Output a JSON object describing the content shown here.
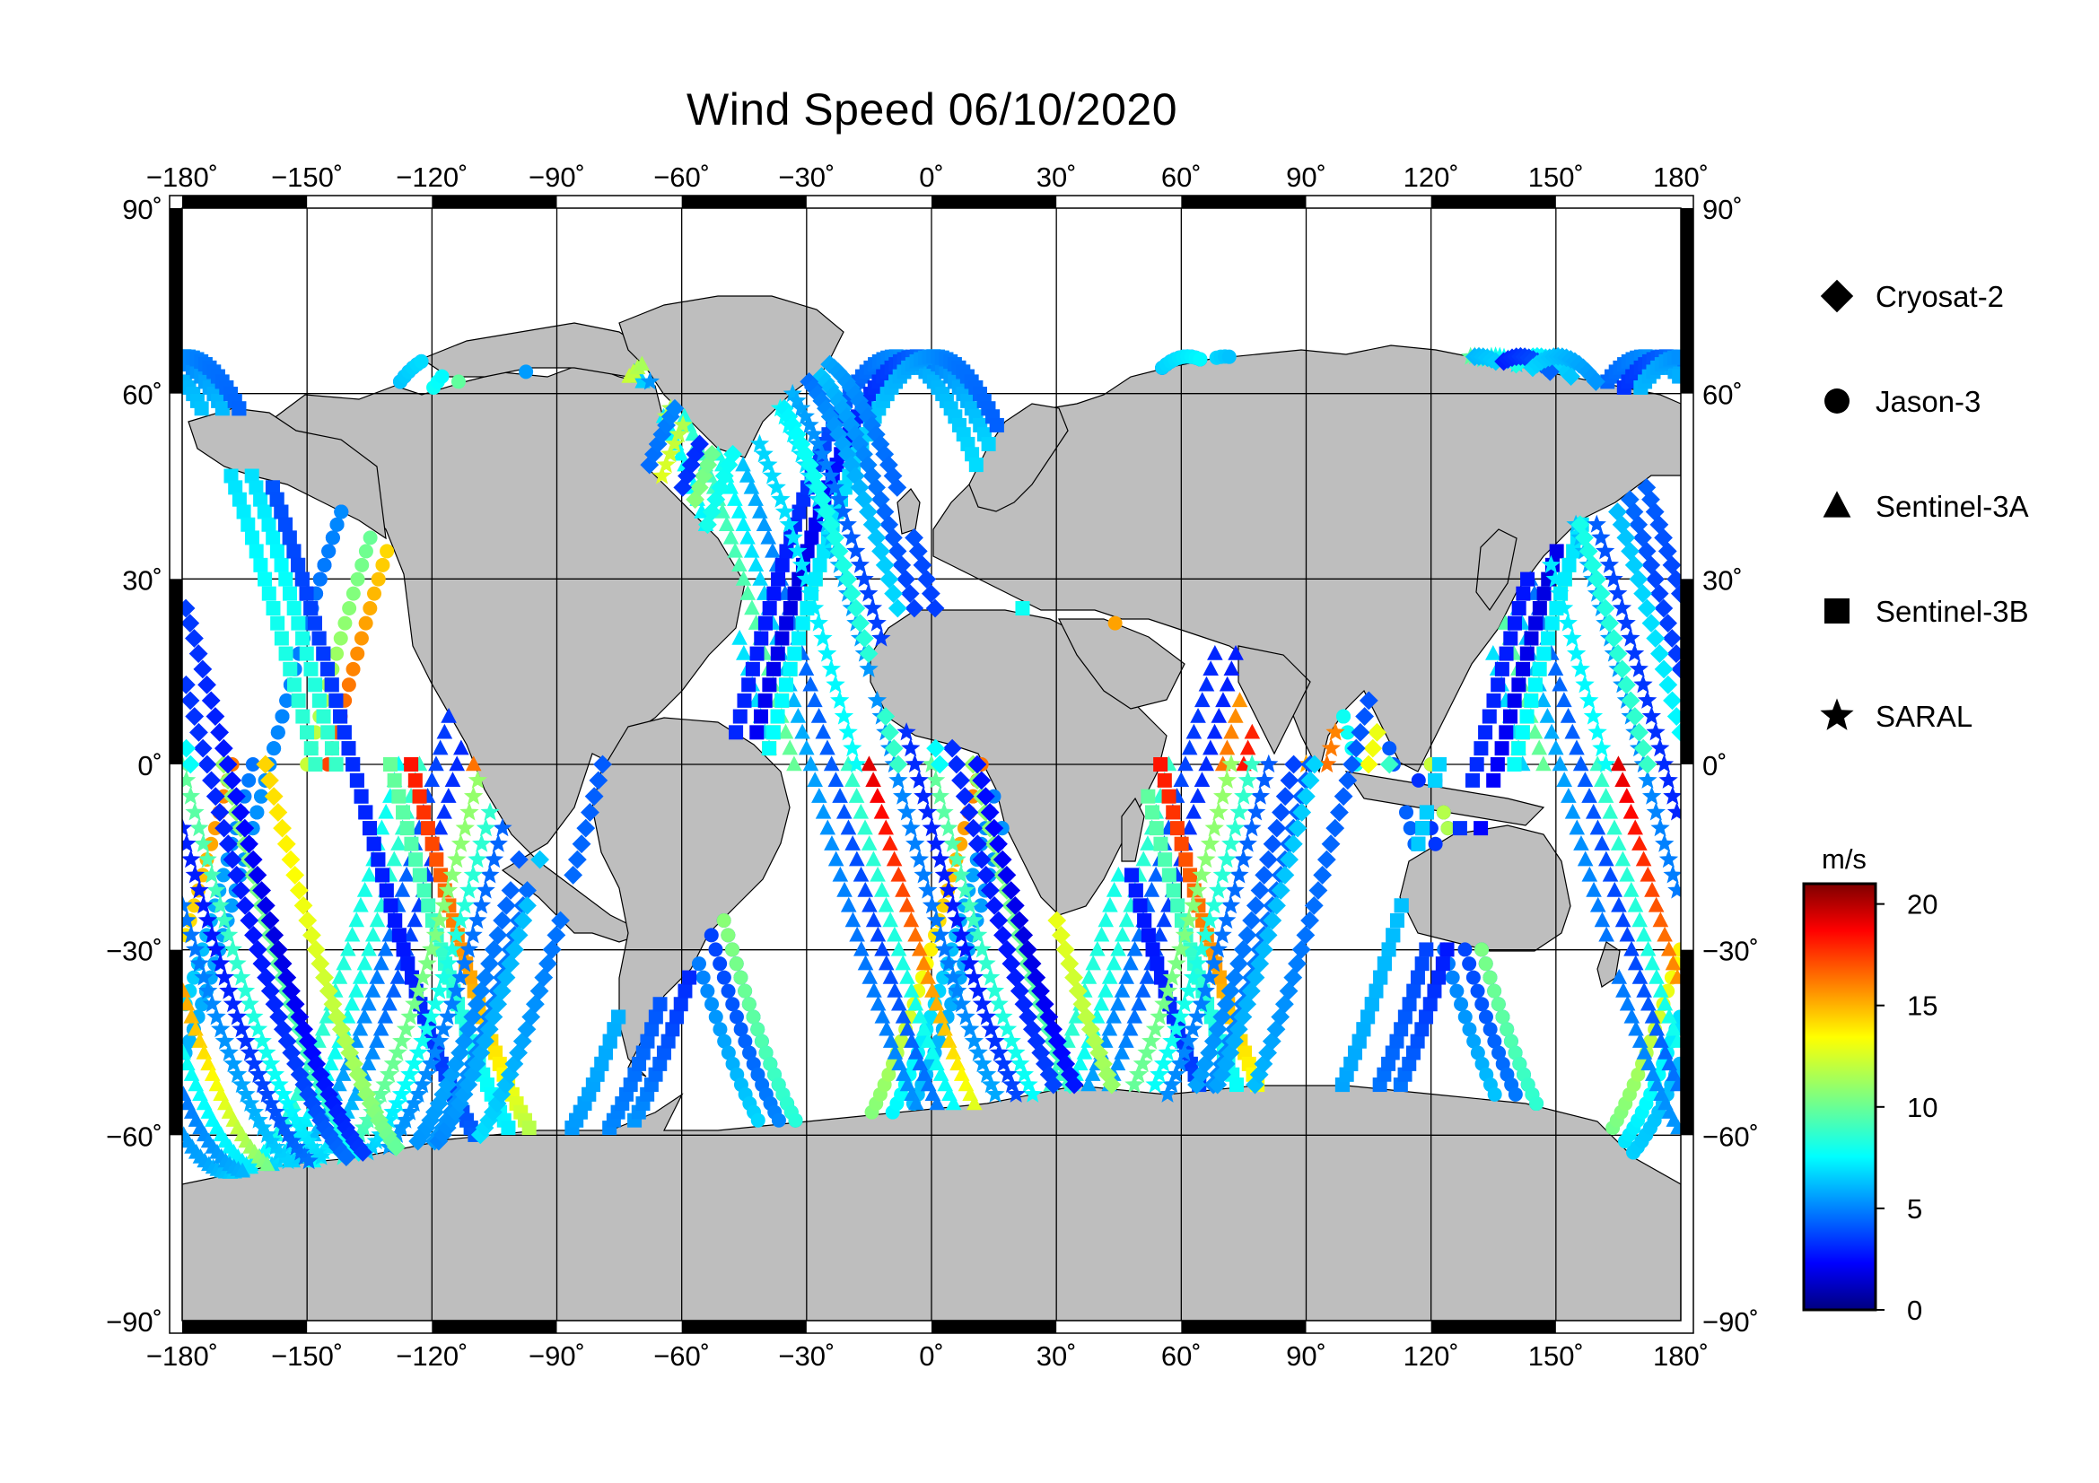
{
  "title": "Wind Speed 06/10/2020",
  "map": {
    "projection": "equirectangular",
    "lon_range": [
      -180,
      180
    ],
    "lat_range": [
      -90,
      90
    ],
    "lon_ticks": [
      "−180˚",
      "−150˚",
      "−120˚",
      "−90˚",
      "−60˚",
      "−30˚",
      "0˚",
      "30˚",
      "60˚",
      "90˚",
      "120˚",
      "150˚",
      "180˚"
    ],
    "lat_ticks_left": [
      "90˚",
      "60˚",
      "30˚",
      "0˚",
      "−30˚",
      "−60˚",
      "−90˚"
    ],
    "lat_ticks_right": [
      "90˚",
      "60˚",
      "30˚",
      "0˚",
      "−30˚",
      "−60˚",
      "−90˚"
    ],
    "land_color": "#bebebe",
    "ocean_color": "#ffffff",
    "grid": true
  },
  "legend": {
    "items": [
      {
        "label": "Cryosat-2",
        "symbol": "diamond"
      },
      {
        "label": "Jason-3",
        "symbol": "circle"
      },
      {
        "label": "Sentinel-3A",
        "symbol": "triangle"
      },
      {
        "label": "Sentinel-3B",
        "symbol": "square"
      },
      {
        "label": "SARAL",
        "symbol": "star"
      }
    ]
  },
  "colorbar": {
    "unit": "m/s",
    "range": [
      0,
      21
    ],
    "ticks": [
      "0",
      "5",
      "10",
      "15",
      "20"
    ],
    "colormap": "jet"
  },
  "chart_data": {
    "type": "scatter",
    "title": "Wind Speed 06/10/2020",
    "xlim": [
      -180,
      180
    ],
    "ylim": [
      -90,
      90
    ],
    "color_value_range": [
      0,
      21
    ],
    "color_value_unit": "m/s",
    "series": [
      {
        "name": "Jason-3",
        "symbol": "circle",
        "tracks": [
          {
            "lon0": -150,
            "dir": 1,
            "speeds": [
              12,
              9,
              6,
              4,
              5,
              8,
              11,
              16
            ]
          },
          {
            "lon0": -60,
            "dir": -1,
            "speeds": [
              4,
              5,
              7,
              5,
              4,
              3,
              6,
              8
            ]
          },
          {
            "lon0": 35,
            "dir": 1,
            "speeds": [
              17,
              12,
              6,
              3,
              4,
              6,
              8,
              5
            ]
          },
          {
            "lon0": 120,
            "dir": -1,
            "speeds": [
              12,
              9,
              7,
              6,
              5,
              7,
              9,
              8
            ]
          }
        ]
      },
      {
        "name": "Sentinel-3A",
        "symbol": "triangle",
        "tracks": [
          {
            "lon0": -110,
            "dir": 1,
            "speeds": [
              16,
              12,
              10,
              7,
              5,
              6,
              9,
              8
            ]
          },
          {
            "lon0": -20,
            "dir": -1,
            "speeds": [
              9,
              8,
              7,
              5,
              3,
              5,
              8,
              7
            ]
          },
          {
            "lon0": 75,
            "dir": 1,
            "speeds": [
              18,
              14,
              9,
              5,
              4,
              6,
              8,
              9
            ]
          },
          {
            "lon0": 165,
            "dir": -1,
            "speeds": [
              19,
              13,
              8,
              4,
              3,
              5,
              9,
              10
            ]
          }
        ]
      },
      {
        "name": "Sentinel-3B",
        "symbol": "square",
        "tracks": [
          {
            "lon0": -130,
            "dir": -1,
            "speeds": [
              10,
              8,
              6,
              4,
              3,
              5,
              7,
              9
            ]
          },
          {
            "lon0": -40,
            "dir": 1,
            "speeds": [
              14,
              10,
              6,
              4,
              5,
              7,
              6,
              5
            ]
          },
          {
            "lon0": 55,
            "dir": -1,
            "speeds": [
              18,
              13,
              7,
              3,
              2,
              4,
              7,
              9
            ]
          },
          {
            "lon0": 140,
            "dir": 1,
            "speeds": [
              8,
              7,
              5,
              4,
              3,
              5,
              6,
              7
            ]
          }
        ]
      },
      {
        "name": "SARAL",
        "symbol": "star",
        "tracks": [
          {
            "lon0": -90,
            "dir": 1,
            "speeds": [
              15,
              12,
              9,
              6,
              5,
              7,
              10,
              11
            ]
          },
          {
            "lon0": 0,
            "dir": -1,
            "speeds": [
              10,
              8,
              6,
              5,
              4,
              6,
              7,
              8
            ]
          },
          {
            "lon0": 95,
            "dir": 1,
            "speeds": [
              16,
              12,
              7,
              4,
              3,
              5,
              8,
              9
            ]
          }
        ]
      },
      {
        "name": "Cryosat-2",
        "symbol": "diamond",
        "tracks": [
          {
            "lon0": -170,
            "dir": -1,
            "speeds": [
              11,
              9,
              6,
              5,
              4,
              6,
              8,
              9
            ]
          },
          {
            "lon0": -75,
            "dir": 1,
            "speeds": [
              13,
              10,
              7,
              4,
              3,
              5,
              6,
              4
            ]
          },
          {
            "lon0": 20,
            "dir": -1,
            "speeds": [
              14,
              11,
              8,
              5,
              4,
              3,
              6,
              8
            ]
          },
          {
            "lon0": 110,
            "dir": 1,
            "speeds": [
              9,
              8,
              6,
              4,
              2,
              4,
              6,
              7
            ]
          }
        ]
      }
    ]
  }
}
